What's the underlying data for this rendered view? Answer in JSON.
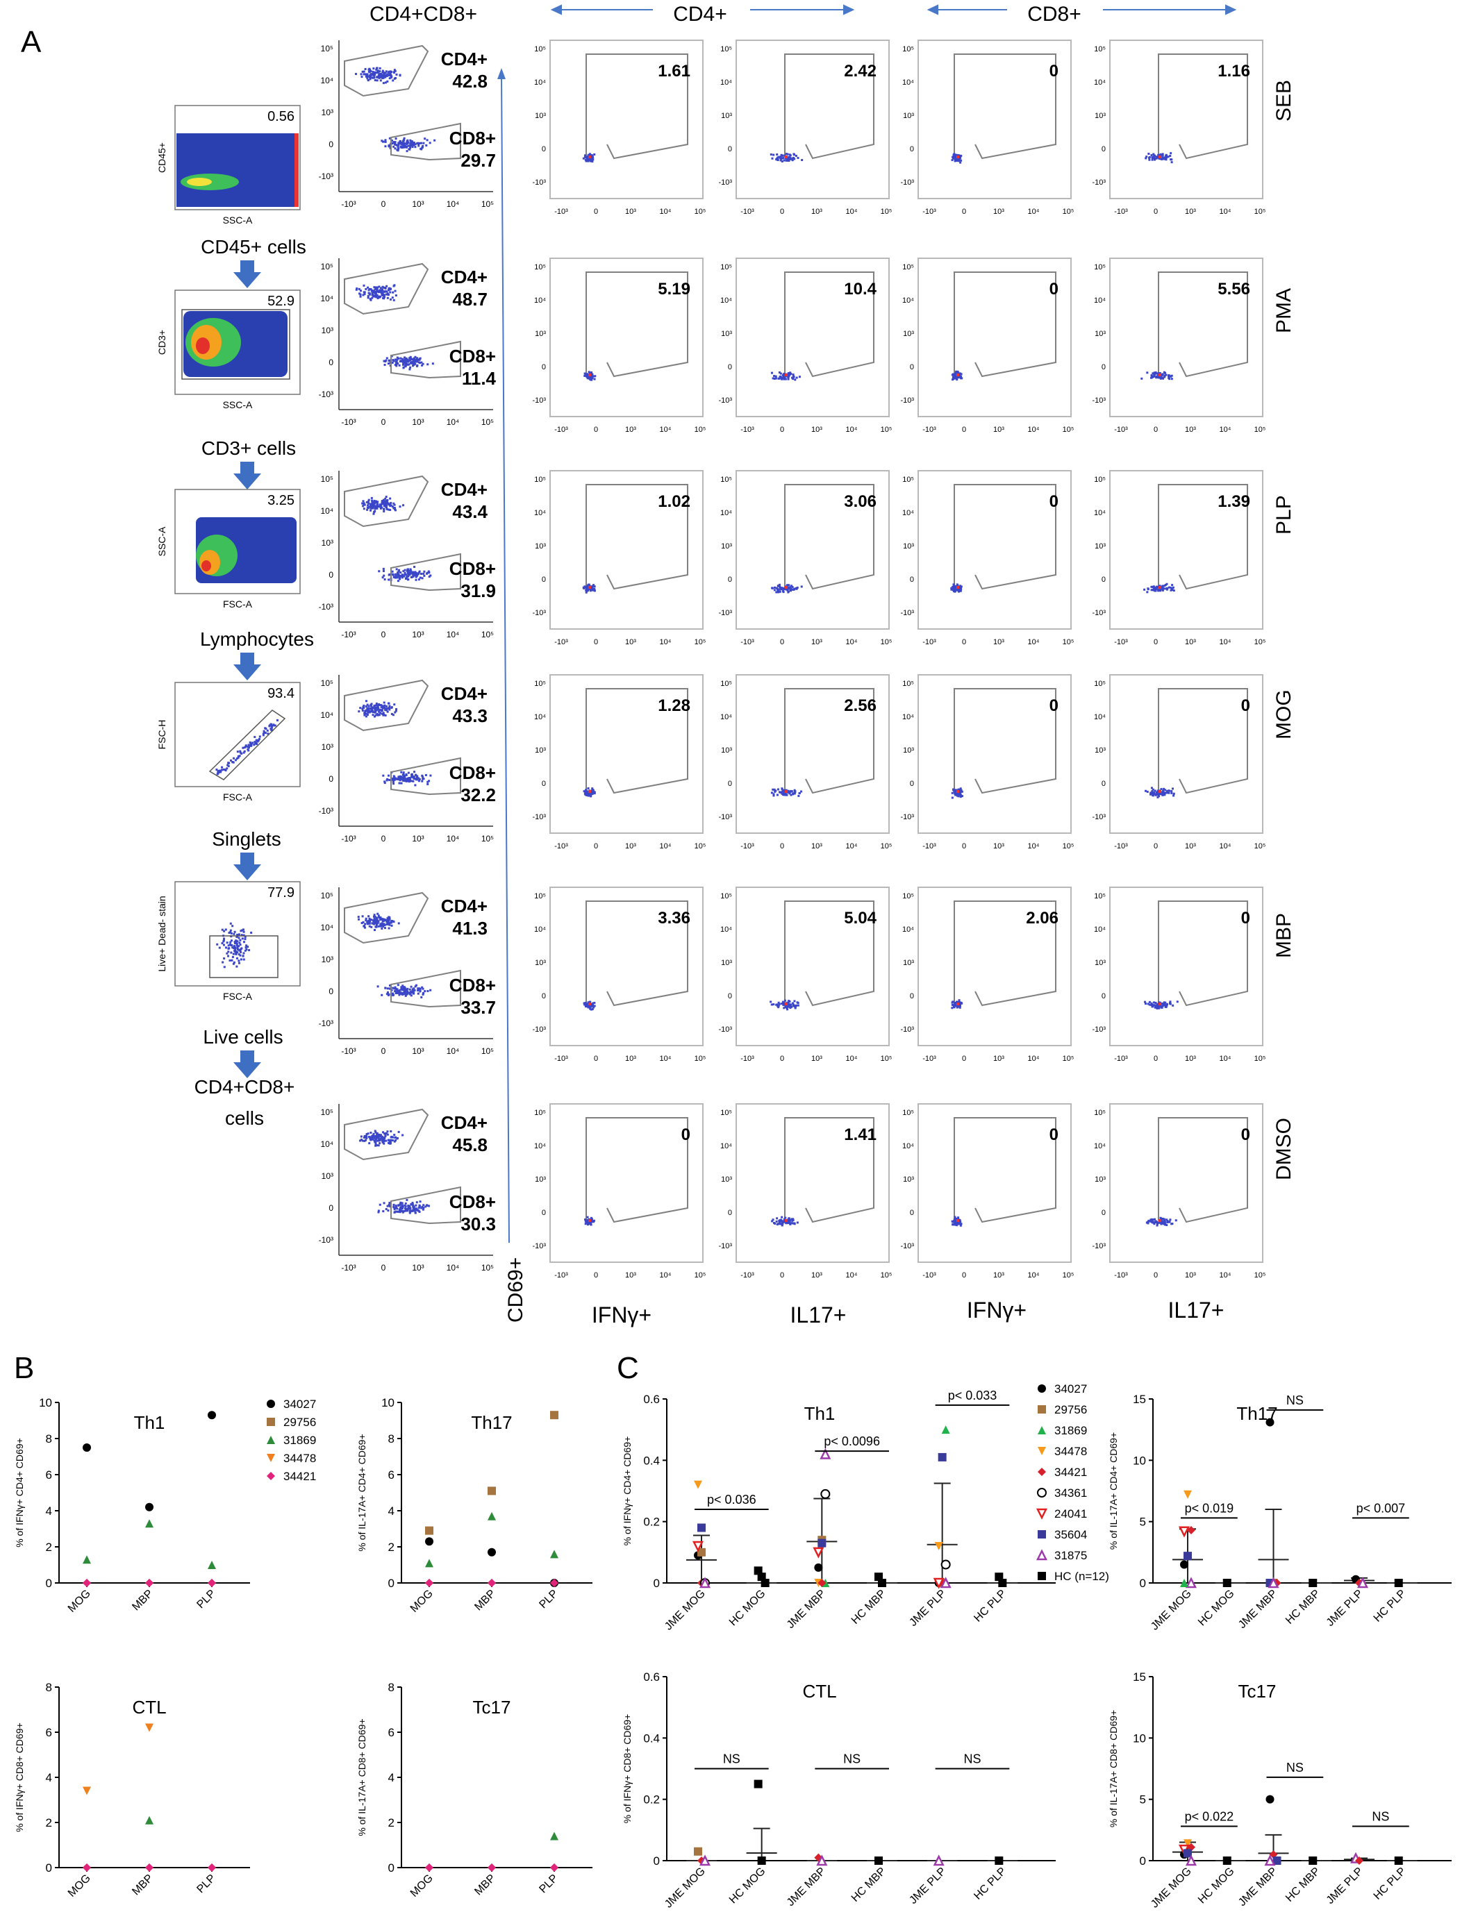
{
  "panel_labels": {
    "a": "A",
    "b": "B",
    "c": "C"
  },
  "headers": {
    "cd4cd8": "CD4+CD8+",
    "cd4": "CD4+",
    "cd8": "CD8+"
  },
  "y_axis_marker": "CD69+",
  "bottom_labels": [
    "IFNγ+",
    "IL17+",
    "IFNγ+",
    "IL17+"
  ],
  "conditions": [
    "SEB",
    "PMA",
    "PLP",
    "MOG",
    "MBP",
    "DMSO"
  ],
  "gating_steps": [
    {
      "label": "CD45+ cells",
      "value": "0.56",
      "xlabel": "SSC-A",
      "ylabel": "CD45+"
    },
    {
      "label": "CD3+ cells",
      "value": "52.9",
      "xlabel": "SSC-A",
      "ylabel": "CD3+"
    },
    {
      "label": "Lymphocytes",
      "value": "3.25",
      "xlabel": "FSC-A",
      "ylabel": "SSC-A"
    },
    {
      "label": "Singlets",
      "value": "93.4",
      "xlabel": "FSC-A",
      "ylabel": "FSC-H"
    },
    {
      "label": "Live cells",
      "value": "77.9",
      "xlabel": "FSC-A",
      "ylabel": "Live+ Dead- stain"
    }
  ],
  "final_gate_label": "CD4+CD8+ cells",
  "cd4cd8_gates": [
    {
      "cd4": "42.8",
      "cd8": "29.7"
    },
    {
      "cd4": "48.7",
      "cd8": "11.4"
    },
    {
      "cd4": "43.4",
      "cd8": "31.9"
    },
    {
      "cd4": "43.3",
      "cd8": "32.2"
    },
    {
      "cd4": "41.3",
      "cd8": "33.7"
    },
    {
      "cd4": "45.8",
      "cd8": "30.3"
    }
  ],
  "gate_names": {
    "cd4": "CD4+",
    "cd8": "CD8+"
  },
  "flow_values": [
    [
      "1.61",
      "2.42",
      "0",
      "1.16"
    ],
    [
      "5.19",
      "10.4",
      "0",
      "5.56"
    ],
    [
      "1.02",
      "3.06",
      "0",
      "1.39"
    ],
    [
      "1.28",
      "2.56",
      "0",
      "0"
    ],
    [
      "3.36",
      "5.04",
      "2.06",
      "0"
    ],
    [
      "0",
      "1.41",
      "0",
      "0"
    ]
  ],
  "chart_data": [
    {
      "panel": "B",
      "type": "scatter",
      "title": "Th1",
      "ylabel": "% of IFNγ+ CD4+ CD69+",
      "ylim": [
        0,
        10
      ],
      "yticks": [
        0,
        2,
        4,
        6,
        8,
        10
      ],
      "categories": [
        "MOG",
        "MBP",
        "PLP"
      ],
      "series": [
        {
          "name": "34027",
          "values": [
            7.5,
            4.2,
            9.3
          ]
        },
        {
          "name": "29756",
          "values": [
            0,
            0,
            0
          ]
        },
        {
          "name": "31869",
          "values": [
            1.3,
            3.3,
            1.0
          ]
        },
        {
          "name": "34478",
          "values": [
            0,
            0,
            0
          ]
        },
        {
          "name": "34421",
          "values": [
            0,
            0,
            0
          ]
        }
      ]
    },
    {
      "panel": "B",
      "type": "scatter",
      "title": "Th17",
      "ylabel": "% of IL-17A+ CD4+ CD69+",
      "ylim": [
        0,
        10
      ],
      "yticks": [
        0,
        2,
        4,
        6,
        8,
        10
      ],
      "categories": [
        "MOG",
        "MBP",
        "PLP"
      ],
      "series": [
        {
          "name": "34027",
          "values": [
            2.3,
            1.7,
            0
          ]
        },
        {
          "name": "29756",
          "values": [
            2.9,
            5.1,
            9.3
          ]
        },
        {
          "name": "31869",
          "values": [
            1.1,
            3.7,
            1.6
          ]
        },
        {
          "name": "34478",
          "values": [
            0,
            0,
            0
          ]
        },
        {
          "name": "34421",
          "values": [
            0,
            0,
            0
          ]
        }
      ]
    },
    {
      "panel": "B",
      "type": "scatter",
      "title": "CTL",
      "ylabel": "% of IFNγ+ CD8+ CD69+",
      "ylim": [
        0,
        8
      ],
      "yticks": [
        0,
        2,
        4,
        6,
        8
      ],
      "categories": [
        "MOG",
        "MBP",
        "PLP"
      ],
      "series": [
        {
          "name": "34027",
          "values": [
            0,
            0,
            0
          ]
        },
        {
          "name": "29756",
          "values": [
            0,
            0,
            0
          ]
        },
        {
          "name": "31869",
          "values": [
            0,
            2.1,
            0
          ]
        },
        {
          "name": "34478",
          "values": [
            3.4,
            6.2,
            0
          ]
        },
        {
          "name": "34421",
          "values": [
            0,
            0,
            0
          ]
        }
      ]
    },
    {
      "panel": "B",
      "type": "scatter",
      "title": "Tc17",
      "ylabel": "% of IL-17A+ CD8+ CD69+",
      "ylim": [
        0,
        8
      ],
      "yticks": [
        0,
        2,
        4,
        6,
        8
      ],
      "categories": [
        "MOG",
        "MBP",
        "PLP"
      ],
      "series": [
        {
          "name": "34027",
          "values": [
            0,
            0,
            0
          ]
        },
        {
          "name": "29756",
          "values": [
            0,
            0,
            0
          ]
        },
        {
          "name": "31869",
          "values": [
            0,
            0,
            1.4
          ]
        },
        {
          "name": "34478",
          "values": [
            0,
            0,
            0
          ]
        },
        {
          "name": "34421",
          "values": [
            0,
            0,
            0
          ]
        }
      ]
    },
    {
      "panel": "C",
      "type": "scatter",
      "title": "Th1",
      "ylabel": "% of IFNγ+ CD4+ CD69+",
      "ylim": [
        0,
        0.6
      ],
      "yticks": [
        0.0,
        0.2,
        0.4,
        0.6
      ],
      "categories": [
        "JME MOG",
        "HC MOG",
        "JME MBP",
        "HC MBP",
        "JME PLP",
        "HC PLP"
      ],
      "groups": [
        {
          "category": "JME MOG",
          "mean": 0.075,
          "err": 0.08,
          "points": [
            {
              "s": 0,
              "v": 0.09
            },
            {
              "s": 1,
              "v": 0.1
            },
            {
              "s": 2,
              "v": 0
            },
            {
              "s": 3,
              "v": 0.32
            },
            {
              "s": 4,
              "v": 0
            },
            {
              "s": 5,
              "v": 0
            },
            {
              "s": 6,
              "v": 0.12
            },
            {
              "s": 7,
              "v": 0.18
            },
            {
              "s": 8,
              "v": 0
            }
          ]
        },
        {
          "category": "HC MOG",
          "mean": 0,
          "err": 0,
          "points": [
            {
              "s": 9,
              "v": 0.04
            },
            {
              "s": 9,
              "v": 0.02
            },
            {
              "s": 9,
              "v": 0
            }
          ]
        },
        {
          "category": "JME MBP",
          "mean": 0.135,
          "err": 0.14,
          "points": [
            {
              "s": 0,
              "v": 0.05
            },
            {
              "s": 1,
              "v": 0.14
            },
            {
              "s": 2,
              "v": 0
            },
            {
              "s": 3,
              "v": 0
            },
            {
              "s": 4,
              "v": 0
            },
            {
              "s": 5,
              "v": 0.29
            },
            {
              "s": 6,
              "v": 0.1
            },
            {
              "s": 7,
              "v": 0.13
            },
            {
              "s": 8,
              "v": 0.42
            }
          ]
        },
        {
          "category": "HC MBP",
          "mean": 0,
          "err": 0,
          "points": [
            {
              "s": 9,
              "v": 0.02
            },
            {
              "s": 9,
              "v": 0
            }
          ]
        },
        {
          "category": "JME PLP",
          "mean": 0.125,
          "err": 0.2,
          "points": [
            {
              "s": 0,
              "v": 0
            },
            {
              "s": 1,
              "v": 0
            },
            {
              "s": 2,
              "v": 0.5
            },
            {
              "s": 3,
              "v": 0.12
            },
            {
              "s": 4,
              "v": 0
            },
            {
              "s": 5,
              "v": 0.06
            },
            {
              "s": 6,
              "v": 0
            },
            {
              "s": 7,
              "v": 0.41
            },
            {
              "s": 8,
              "v": 0
            }
          ]
        },
        {
          "category": "HC PLP",
          "mean": 0,
          "err": 0,
          "points": [
            {
              "s": 9,
              "v": 0.02
            },
            {
              "s": 9,
              "v": 0
            }
          ]
        }
      ],
      "comparisons": [
        {
          "pair": [
            "JME MOG",
            "HC MOG"
          ],
          "label": "p< 0.036",
          "y": 0.24
        },
        {
          "pair": [
            "JME MBP",
            "HC MBP"
          ],
          "label": "p< 0.0096",
          "y": 0.43
        },
        {
          "pair": [
            "JME PLP",
            "HC PLP"
          ],
          "label": "p< 0.033",
          "y": 0.58
        }
      ]
    },
    {
      "panel": "C",
      "type": "scatter",
      "title": "Th17",
      "ylabel": "% of IL-17A+ CD4+ CD69+",
      "ylim": [
        0,
        15
      ],
      "yticks": [
        0,
        5,
        10,
        15
      ],
      "categories": [
        "JME MOG",
        "HC MOG",
        "JME MBP",
        "HC MBP",
        "JME PLP",
        "HC PLP"
      ],
      "groups": [
        {
          "category": "JME MOG",
          "mean": 1.9,
          "err": 2.5,
          "points": [
            {
              "s": 0,
              "v": 1.5
            },
            {
              "s": 3,
              "v": 7.2
            },
            {
              "s": 4,
              "v": 4.3
            },
            {
              "s": 6,
              "v": 4.2
            },
            {
              "s": 7,
              "v": 2.2
            },
            {
              "s": 8,
              "v": 0
            },
            {
              "s": 2,
              "v": 0
            }
          ]
        },
        {
          "category": "HC MOG",
          "mean": 0,
          "err": 0,
          "points": [
            {
              "s": 9,
              "v": 0
            }
          ]
        },
        {
          "category": "JME MBP",
          "mean": 1.9,
          "err": 4.1,
          "points": [
            {
              "s": 0,
              "v": 13.1
            },
            {
              "s": 1,
              "v": 0
            },
            {
              "s": 4,
              "v": 0
            },
            {
              "s": 7,
              "v": 0
            },
            {
              "s": 8,
              "v": 0
            }
          ]
        },
        {
          "category": "HC MBP",
          "mean": 0,
          "err": 0,
          "points": [
            {
              "s": 9,
              "v": 0
            }
          ]
        },
        {
          "category": "JME PLP",
          "mean": 0.2,
          "err": 0.2,
          "points": [
            {
              "s": 0,
              "v": 0.3
            },
            {
              "s": 4,
              "v": 0
            },
            {
              "s": 8,
              "v": 0
            }
          ]
        },
        {
          "category": "HC PLP",
          "mean": 0,
          "err": 0,
          "points": [
            {
              "s": 9,
              "v": 0
            }
          ]
        }
      ],
      "comparisons": [
        {
          "pair": [
            "JME MOG",
            "HC MOG"
          ],
          "label": "p< 0.019",
          "y": 5.3
        },
        {
          "pair": [
            "JME MBP",
            "HC MBP"
          ],
          "label": "NS",
          "y": 14.1
        },
        {
          "pair": [
            "JME PLP",
            "HC PLP"
          ],
          "label": "p< 0.007",
          "y": 5.3
        }
      ]
    },
    {
      "panel": "C",
      "type": "scatter",
      "title": "CTL",
      "ylabel": "% of IFNγ+ CD8+ CD69+",
      "ylim": [
        0,
        0.6
      ],
      "yticks": [
        0.0,
        0.2,
        0.4,
        0.6
      ],
      "categories": [
        "JME MOG",
        "HC MOG",
        "JME MBP",
        "HC MBP",
        "JME PLP",
        "HC PLP"
      ],
      "groups": [
        {
          "category": "JME MOG",
          "mean": 0,
          "err": 0,
          "points": [
            {
              "s": 1,
              "v": 0.03
            },
            {
              "s": 4,
              "v": 0
            },
            {
              "s": 8,
              "v": 0
            }
          ]
        },
        {
          "category": "HC MOG",
          "mean": 0.025,
          "err": 0.08,
          "points": [
            {
              "s": 9,
              "v": 0.25
            },
            {
              "s": 9,
              "v": 0
            }
          ]
        },
        {
          "category": "JME MBP",
          "mean": 0,
          "err": 0,
          "points": [
            {
              "s": 4,
              "v": 0.01
            },
            {
              "s": 8,
              "v": 0
            }
          ]
        },
        {
          "category": "HC MBP",
          "mean": 0,
          "err": 0,
          "points": [
            {
              "s": 9,
              "v": 0
            }
          ]
        },
        {
          "category": "JME PLP",
          "mean": 0,
          "err": 0,
          "points": [
            {
              "s": 8,
              "v": 0
            }
          ]
        },
        {
          "category": "HC PLP",
          "mean": 0,
          "err": 0,
          "points": [
            {
              "s": 9,
              "v": 0
            }
          ]
        }
      ],
      "comparisons": [
        {
          "pair": [
            "JME MOG",
            "HC MOG"
          ],
          "label": "NS",
          "y": 0.3
        },
        {
          "pair": [
            "JME MBP",
            "HC MBP"
          ],
          "label": "NS",
          "y": 0.3
        },
        {
          "pair": [
            "JME PLP",
            "HC PLP"
          ],
          "label": "NS",
          "y": 0.3
        }
      ]
    },
    {
      "panel": "C",
      "type": "scatter",
      "title": "Tc17",
      "ylabel": "% of IL-17A+ CD8+ CD69+",
      "ylim": [
        0,
        15
      ],
      "yticks": [
        0,
        5,
        10,
        15
      ],
      "categories": [
        "JME MOG",
        "HC MOG",
        "JME MBP",
        "HC MBP",
        "JME PLP",
        "HC PLP"
      ],
      "groups": [
        {
          "category": "JME MOG",
          "mean": 0.7,
          "err": 0.8,
          "points": [
            {
              "s": 0,
              "v": 0.5
            },
            {
              "s": 3,
              "v": 1.4
            },
            {
              "s": 4,
              "v": 1.1
            },
            {
              "s": 6,
              "v": 0.9
            },
            {
              "s": 7,
              "v": 0.6
            },
            {
              "s": 8,
              "v": 0
            }
          ]
        },
        {
          "category": "HC MOG",
          "mean": 0,
          "err": 0,
          "points": [
            {
              "s": 9,
              "v": 0
            }
          ]
        },
        {
          "category": "JME MBP",
          "mean": 0.6,
          "err": 1.5,
          "points": [
            {
              "s": 0,
              "v": 5.0
            },
            {
              "s": 4,
              "v": 0.5
            },
            {
              "s": 7,
              "v": 0
            },
            {
              "s": 8,
              "v": 0
            }
          ]
        },
        {
          "category": "HC MBP",
          "mean": 0,
          "err": 0,
          "points": [
            {
              "s": 9,
              "v": 0
            }
          ]
        },
        {
          "category": "JME PLP",
          "mean": 0.1,
          "err": 0.1,
          "points": [
            {
              "s": 8,
              "v": 0.2
            },
            {
              "s": 4,
              "v": 0
            }
          ]
        },
        {
          "category": "HC PLP",
          "mean": 0,
          "err": 0,
          "points": [
            {
              "s": 9,
              "v": 0
            }
          ]
        }
      ],
      "comparisons": [
        {
          "pair": [
            "JME MOG",
            "HC MOG"
          ],
          "label": "p< 0.022",
          "y": 2.8
        },
        {
          "pair": [
            "JME MBP",
            "HC MBP"
          ],
          "label": "NS",
          "y": 6.8
        },
        {
          "pair": [
            "JME PLP",
            "HC PLP"
          ],
          "label": "NS",
          "y": 2.8
        }
      ]
    }
  ],
  "legend_b": [
    {
      "name": "34027",
      "color": "#000000",
      "marker": "circle"
    },
    {
      "name": "29756",
      "color": "#a6743f",
      "marker": "square"
    },
    {
      "name": "31869",
      "color": "#2e8b3a",
      "marker": "triangle"
    },
    {
      "name": "34478",
      "color": "#f07f1f",
      "marker": "triangle-down"
    },
    {
      "name": "34421",
      "color": "#e0247a",
      "marker": "diamond"
    }
  ],
  "legend_c": [
    {
      "name": "34027",
      "color": "#000000",
      "marker": "circle"
    },
    {
      "name": "29756",
      "color": "#a6743f",
      "marker": "square"
    },
    {
      "name": "31869",
      "color": "#21b24b",
      "marker": "triangle"
    },
    {
      "name": "34478",
      "color": "#f79a1c",
      "marker": "triangle-down"
    },
    {
      "name": "34421",
      "color": "#d6202a",
      "marker": "diamond"
    },
    {
      "name": "34361",
      "color": "#000000",
      "marker": "open-circle"
    },
    {
      "name": "24041",
      "color": "#e22020",
      "marker": "open-triangle-down"
    },
    {
      "name": "35604",
      "color": "#3a3a9a",
      "marker": "square"
    },
    {
      "name": "31875",
      "color": "#9b3aa8",
      "marker": "open-triangle"
    },
    {
      "name": "HC (n=12)",
      "color": "#000000",
      "marker": "square"
    }
  ],
  "colors": {
    "dot": "#3b46c8",
    "gate": "#808080",
    "arrow": "#4a78c8"
  }
}
